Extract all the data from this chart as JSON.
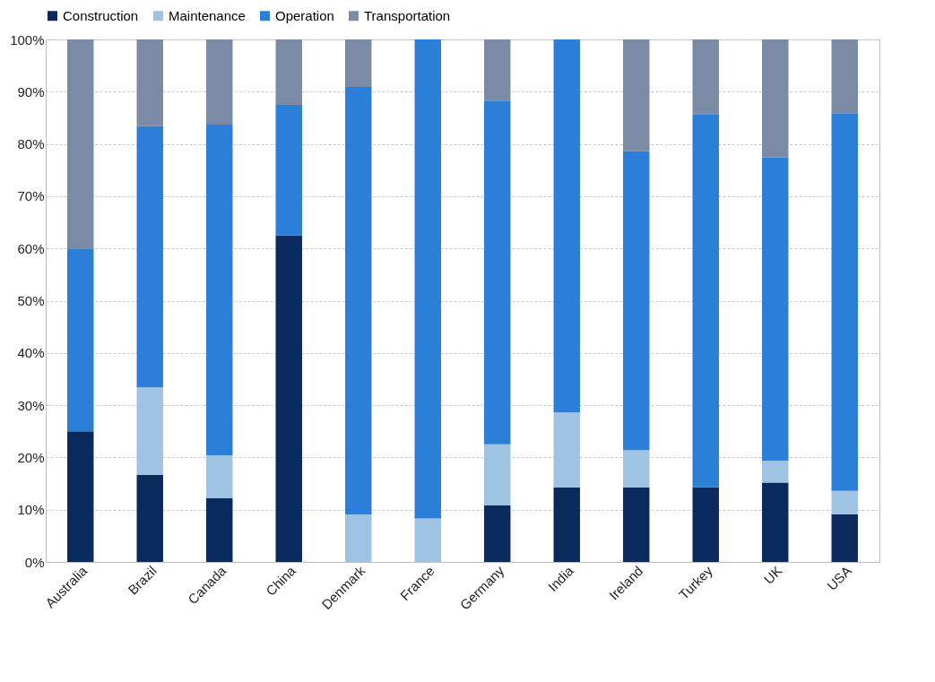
{
  "chart_data": {
    "type": "bar",
    "stacked": true,
    "legend": "top",
    "grid": "y",
    "categories": [
      "Australia",
      "Brazil",
      "Canada",
      "China",
      "Denmark",
      "France",
      "Germany",
      "India",
      "Ireland",
      "Turkey",
      "UK",
      "USA"
    ],
    "series": [
      {
        "name": "Construction",
        "color": "#0a2a5e",
        "values": [
          25,
          16.7,
          12.2,
          62.5,
          0,
          0,
          10.8,
          14.3,
          14.3,
          14.3,
          15.2,
          9.1
        ]
      },
      {
        "name": "Maintenance",
        "color": "#9fc3e2",
        "values": [
          0,
          16.7,
          8.2,
          0,
          9.1,
          8.3,
          11.7,
          14.3,
          7.1,
          0,
          4.2,
          4.5
        ]
      },
      {
        "name": "Operation",
        "color": "#2b7fd8",
        "values": [
          35,
          50,
          63.3,
          25,
          81.8,
          91.7,
          65.8,
          71.4,
          57.2,
          71.4,
          58,
          72.3
        ]
      },
      {
        "name": "Transportation",
        "color": "#7b8aa5",
        "values": [
          40,
          16.6,
          16.3,
          12.5,
          9.1,
          0,
          11.7,
          0,
          21.4,
          14.3,
          22.6,
          14.1
        ]
      }
    ],
    "ylim": [
      0,
      100
    ],
    "yticks": [
      {
        "value": 0,
        "label": "0%"
      },
      {
        "value": 10,
        "label": "10%"
      },
      {
        "value": 20,
        "label": "20%"
      },
      {
        "value": 30,
        "label": "30%"
      },
      {
        "value": 40,
        "label": "40%"
      },
      {
        "value": 50,
        "label": "50%"
      },
      {
        "value": 60,
        "label": "60%"
      },
      {
        "value": 70,
        "label": "70%"
      },
      {
        "value": 80,
        "label": "80%"
      },
      {
        "value": 90,
        "label": "90%"
      },
      {
        "value": 100,
        "label": "100%"
      }
    ]
  }
}
